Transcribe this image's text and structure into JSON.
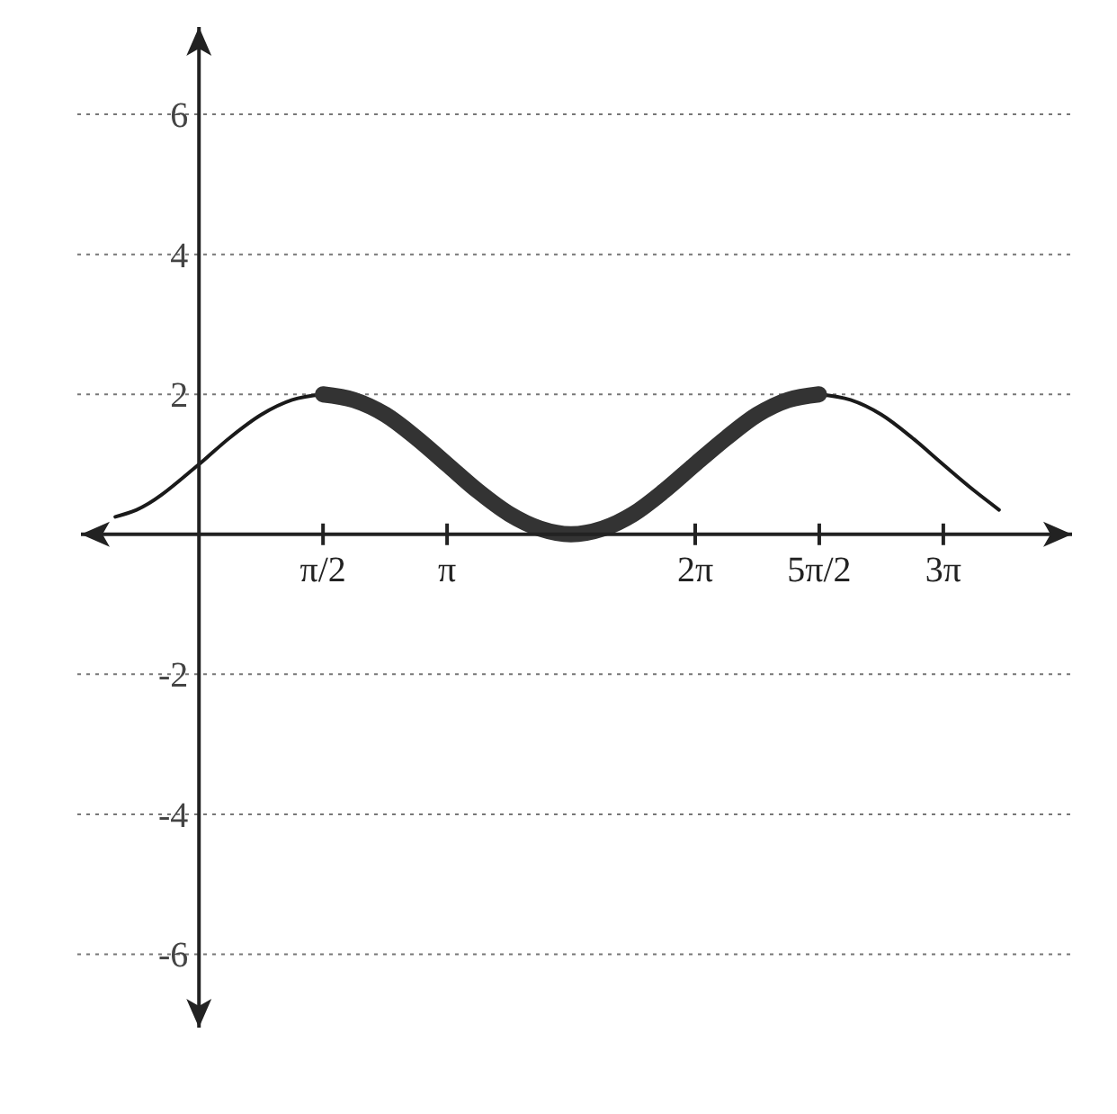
{
  "chart_data": {
    "type": "line",
    "xlim": [
      -1.54,
      11.1
    ],
    "ylim": [
      -7.1,
      7.3
    ],
    "xticks": [
      {
        "value": 1.5708,
        "label": "π/2"
      },
      {
        "value": 3.1416,
        "label": "π"
      },
      {
        "value": 6.2832,
        "label": "2π"
      },
      {
        "value": 7.854,
        "label": "5π/2"
      },
      {
        "value": 9.4248,
        "label": "3π"
      }
    ],
    "yticks": [
      -6,
      -4,
      -2,
      2,
      4,
      6
    ],
    "grid": "y",
    "marker": "none",
    "line_style": "solid",
    "series": [
      {
        "color": "#1a1a1a",
        "x": [
          -1.06,
          -0.79,
          0,
          0.39,
          0.79,
          1.18,
          1.57,
          1.96,
          2.36,
          2.75,
          3.14,
          3.53,
          3.93,
          4.32,
          4.71,
          5.11,
          5.5,
          5.89,
          6.28,
          6.68,
          7.07,
          7.46,
          7.85,
          8.25,
          8.64,
          9.03,
          9.42,
          9.82,
          10.13
        ],
        "values": [
          0.25,
          0.35,
          1,
          1.38,
          1.71,
          1.92,
          2,
          null,
          null,
          null,
          null,
          null,
          null,
          null,
          null,
          null,
          null,
          null,
          null,
          null,
          null,
          null,
          2,
          1.92,
          1.71,
          1.38,
          1,
          0.62,
          0.35
        ]
      },
      {
        "color": "#333333",
        "x": [
          1.57,
          1.96,
          2.36,
          2.75,
          3.14,
          3.53,
          3.93,
          4.32,
          4.71,
          5.11,
          5.5,
          5.89,
          6.28,
          6.68,
          7.07,
          7.46,
          7.85
        ],
        "values": [
          2,
          1.92,
          1.71,
          1.38,
          1,
          0.62,
          0.29,
          0.08,
          0,
          0.08,
          0.29,
          0.62,
          1,
          1.38,
          1.71,
          1.92,
          2
        ]
      }
    ]
  }
}
